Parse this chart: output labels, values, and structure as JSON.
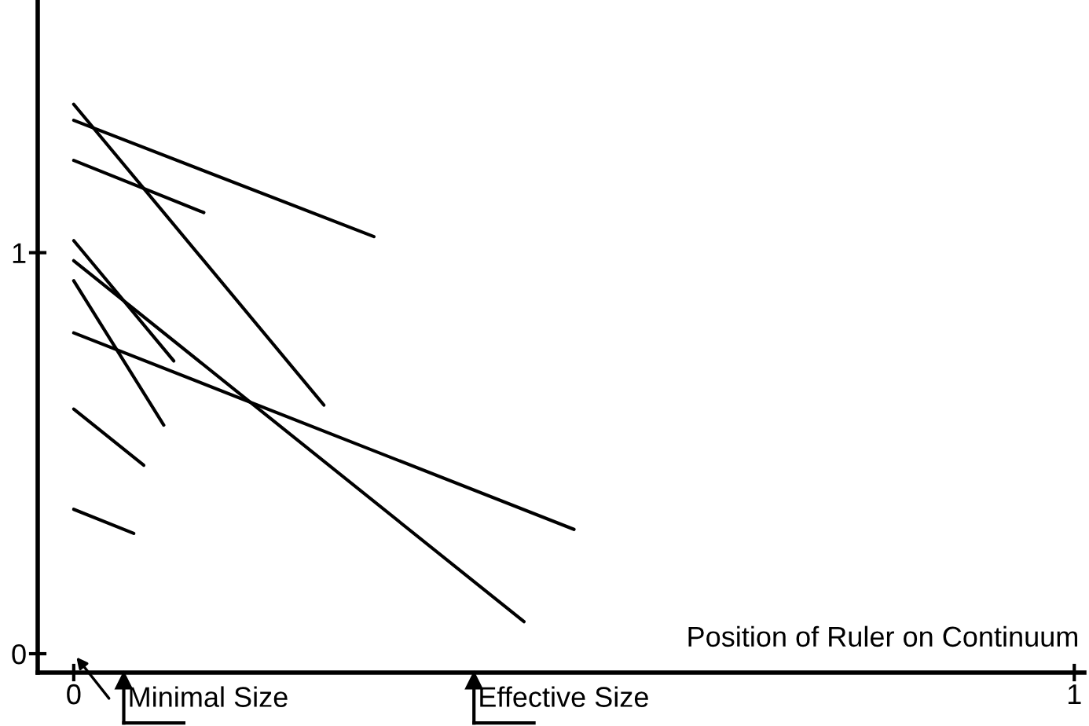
{
  "chart_data": {
    "type": "line",
    "xlabel": "Position of Ruler on Continuum",
    "series": [
      {
        "x": [
          0,
          0.25
        ],
        "values": [
          1.37,
          0.62
        ],
        "color": "#000000"
      },
      {
        "x": [
          0,
          0.3
        ],
        "values": [
          1.33,
          1.04
        ],
        "color": "#000000"
      },
      {
        "x": [
          0,
          0.13
        ],
        "values": [
          1.23,
          1.1
        ],
        "color": "#000000"
      },
      {
        "x": [
          0,
          0.1
        ],
        "values": [
          1.03,
          0.73
        ],
        "color": "#000000"
      },
      {
        "x": [
          0,
          0.45
        ],
        "values": [
          0.98,
          0.08
        ],
        "color": "#000000"
      },
      {
        "x": [
          0,
          0.09
        ],
        "values": [
          0.93,
          0.57
        ],
        "color": "#000000"
      },
      {
        "x": [
          0,
          0.5
        ],
        "values": [
          0.8,
          0.31
        ],
        "color": "#000000"
      },
      {
        "x": [
          0,
          0.07
        ],
        "values": [
          0.61,
          0.47
        ],
        "color": "#000000"
      },
      {
        "x": [
          0,
          0.06
        ],
        "values": [
          0.36,
          0.3
        ],
        "color": "#000000"
      }
    ],
    "ref_lines": [
      {
        "axis": "x",
        "value": 0.05,
        "label": "Minimal Size"
      },
      {
        "axis": "x",
        "value": 0.4,
        "label": "Effective Size"
      }
    ],
    "xlim": [
      -0.036,
      1.01
    ],
    "ylim": [
      -0.047,
      1.63
    ],
    "xticks": [
      0,
      1
    ],
    "yticks": [
      0,
      1
    ],
    "grid": false,
    "marker": "none",
    "line_style": "solid"
  }
}
